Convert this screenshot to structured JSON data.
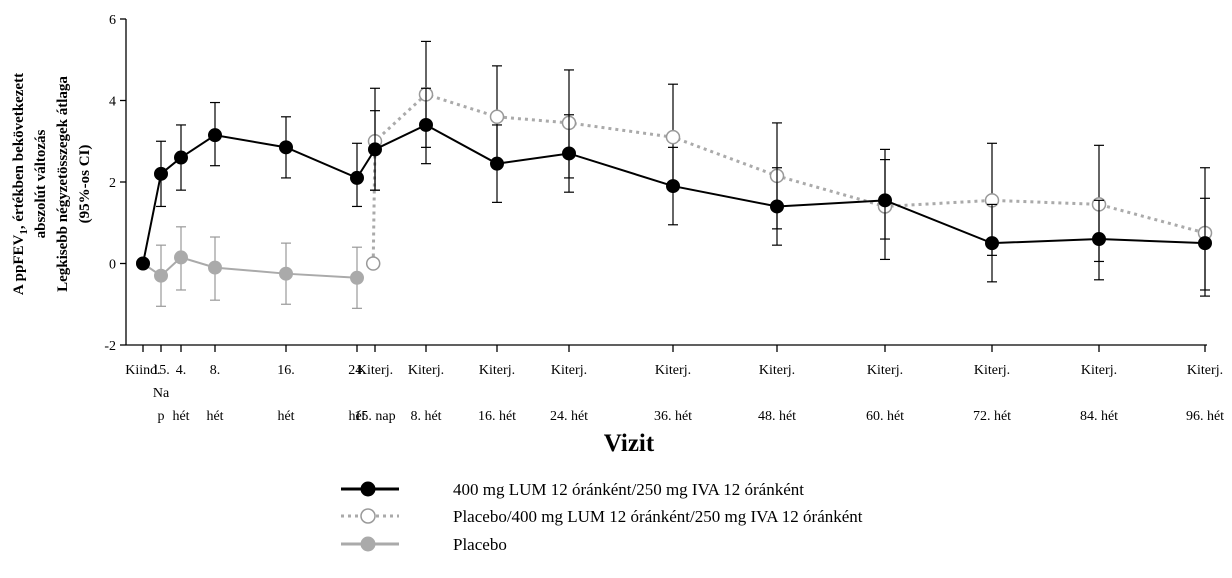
{
  "chart_data": {
    "type": "line",
    "title": "",
    "xlabel": "Vizit",
    "ylabel_lines": [
      "A ppFEV",
      "abszolút változás",
      "Legkisebb négyzetösszegek átlaga",
      "(95%-os CI)"
    ],
    "ylabel_sub": "1",
    "ylabel_tail": ", értékben bekövetkezett",
    "ylim": [
      -2,
      6
    ],
    "yticks": [
      "-2",
      "0",
      "2",
      "4",
      "6"
    ],
    "categories": [
      {
        "lines": [
          "Kiind."
        ]
      },
      {
        "lines": [
          "15.",
          "Na",
          "p"
        ]
      },
      {
        "lines": [
          "4.",
          "hét"
        ]
      },
      {
        "lines": [
          "8.",
          "hét"
        ]
      },
      {
        "lines": [
          "16.",
          "hét"
        ]
      },
      {
        "lines": [
          "24.",
          "hét"
        ]
      },
      {
        "lines": [
          "Kiterj.",
          "15. nap"
        ]
      },
      {
        "lines": [
          "Kiterj.",
          "8. hét"
        ]
      },
      {
        "lines": [
          "Kiterj.",
          "16. hét"
        ]
      },
      {
        "lines": [
          "Kiterj.",
          "24. hét"
        ]
      },
      {
        "lines": [
          "Kiterj.",
          "36. hét"
        ]
      },
      {
        "lines": [
          "Kiterj.",
          "48. hét"
        ]
      },
      {
        "lines": [
          "Kiterj.",
          "60. hét"
        ]
      },
      {
        "lines": [
          "Kiterj.",
          "72. hét"
        ]
      },
      {
        "lines": [
          "Kiterj.",
          "84. hét"
        ]
      },
      {
        "lines": [
          "Kiterj.",
          "96. hét"
        ]
      }
    ],
    "series": [
      {
        "name": "400 mg LUM 12 óránként/250 mg IVA 12 óránként",
        "color": "#000000",
        "style": "solid",
        "marker": "filled",
        "points": [
          {
            "cat": 0,
            "y": 0.0,
            "lo": null,
            "hi": null
          },
          {
            "cat": 1,
            "y": 2.2,
            "lo": 1.4,
            "hi": 3.0
          },
          {
            "cat": 2,
            "y": 2.6,
            "lo": 1.8,
            "hi": 3.4
          },
          {
            "cat": 3,
            "y": 3.15,
            "lo": 2.4,
            "hi": 3.95
          },
          {
            "cat": 4,
            "y": 2.85,
            "lo": 2.1,
            "hi": 3.6
          },
          {
            "cat": 5,
            "y": 2.1,
            "lo": 1.4,
            "hi": 2.95
          },
          {
            "cat": 6,
            "y": 2.8,
            "lo": 1.8,
            "hi": 3.75
          },
          {
            "cat": 7,
            "y": 3.4,
            "lo": 2.45,
            "hi": 4.3
          },
          {
            "cat": 8,
            "y": 2.45,
            "lo": 1.5,
            "hi": 3.4
          },
          {
            "cat": 9,
            "y": 2.7,
            "lo": 1.75,
            "hi": 3.65
          },
          {
            "cat": 10,
            "y": 1.9,
            "lo": 0.95,
            "hi": 2.85
          },
          {
            "cat": 11,
            "y": 1.4,
            "lo": 0.45,
            "hi": 2.35
          },
          {
            "cat": 12,
            "y": 1.55,
            "lo": 0.1,
            "hi": 2.55
          },
          {
            "cat": 13,
            "y": 0.5,
            "lo": -0.45,
            "hi": 1.45
          },
          {
            "cat": 14,
            "y": 0.6,
            "lo": -0.4,
            "hi": 1.55
          },
          {
            "cat": 15,
            "y": 0.5,
            "lo": -0.65,
            "hi": 1.6
          }
        ]
      },
      {
        "name": "Placebo/400 mg LUM 12 óránként/250 mg IVA 12 óránként",
        "color": "#aaaaaa",
        "style": "dotted",
        "marker": "open",
        "points": [
          {
            "cat": 5.9,
            "y": 0.0,
            "lo": null,
            "hi": null
          },
          {
            "cat": 6,
            "y": 3.0,
            "lo": 1.8,
            "hi": 4.3
          },
          {
            "cat": 7,
            "y": 4.15,
            "lo": 2.85,
            "hi": 5.45
          },
          {
            "cat": 8,
            "y": 3.6,
            "lo": 2.35,
            "hi": 4.85
          },
          {
            "cat": 9,
            "y": 3.45,
            "lo": 2.1,
            "hi": 4.75
          },
          {
            "cat": 10,
            "y": 3.1,
            "lo": 1.8,
            "hi": 4.4
          },
          {
            "cat": 11,
            "y": 2.15,
            "lo": 0.85,
            "hi": 3.45
          },
          {
            "cat": 12,
            "y": 1.4,
            "lo": 0.6,
            "hi": 2.8
          },
          {
            "cat": 13,
            "y": 1.55,
            "lo": 0.2,
            "hi": 2.95
          },
          {
            "cat": 14,
            "y": 1.45,
            "lo": 0.05,
            "hi": 2.9
          },
          {
            "cat": 15,
            "y": 0.75,
            "lo": -0.8,
            "hi": 2.35
          }
        ]
      },
      {
        "name": "Placebo",
        "color": "#aaaaaa",
        "style": "solid",
        "marker": "filled",
        "points": [
          {
            "cat": 0,
            "y": 0.0,
            "lo": null,
            "hi": null
          },
          {
            "cat": 1,
            "y": -0.3,
            "lo": -1.05,
            "hi": 0.45
          },
          {
            "cat": 2,
            "y": 0.15,
            "lo": -0.65,
            "hi": 0.9
          },
          {
            "cat": 3,
            "y": -0.1,
            "lo": -0.9,
            "hi": 0.65
          },
          {
            "cat": 4,
            "y": -0.25,
            "lo": -1.0,
            "hi": 0.5
          },
          {
            "cat": 5,
            "y": -0.35,
            "lo": -1.1,
            "hi": 0.4
          }
        ]
      }
    ],
    "legend_position": "bottom",
    "grid": false
  }
}
